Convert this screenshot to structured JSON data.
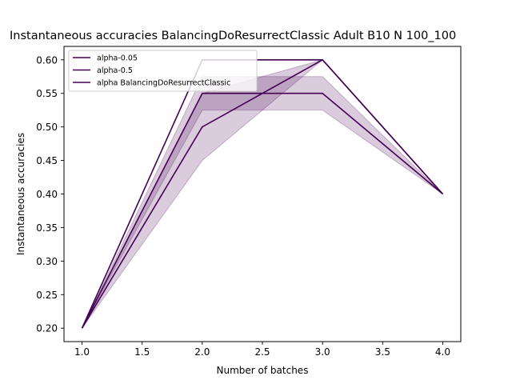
{
  "chart_data": {
    "type": "line",
    "title": "Instantaneous accuracies BalancingDoResurrectClassic Adult B10 N 100_100",
    "xlabel": "Number of batches",
    "ylabel": "Instantaneous accuracies",
    "xlim": [
      0.85,
      4.15
    ],
    "ylim": [
      0.18,
      0.62
    ],
    "x_ticks": [
      1.0,
      1.5,
      2.0,
      2.5,
      3.0,
      3.5,
      4.0
    ],
    "y_ticks": [
      0.2,
      0.25,
      0.3,
      0.35,
      0.4,
      0.45,
      0.5,
      0.55,
      0.6
    ],
    "x": [
      1.0,
      2.0,
      3.0,
      4.0
    ],
    "legend_position": "top-left",
    "grid": false,
    "series": [
      {
        "name": "alpha-0.05",
        "values": [
          0.2,
          0.6,
          0.6,
          0.4
        ],
        "color": "#440154"
      },
      {
        "name": "alpha-0.5",
        "values": [
          0.2,
          0.5,
          0.6,
          0.4
        ],
        "color": "#440154"
      },
      {
        "name": "alpha BalancingDoResurrectClassic",
        "values": [
          0.2,
          0.55,
          0.55,
          0.4
        ],
        "color": "#440154"
      }
    ],
    "bands": [
      {
        "of_series": "alpha-0.5",
        "lower": [
          0.2,
          0.45,
          0.6,
          0.4
        ],
        "upper": [
          0.2,
          0.55,
          0.6,
          0.4
        ],
        "color": "#440154",
        "alpha": 0.2
      },
      {
        "of_series": "alpha BalancingDoResurrectClassic",
        "lower": [
          0.2,
          0.525,
          0.525,
          0.4
        ],
        "upper": [
          0.2,
          0.575,
          0.575,
          0.4
        ],
        "color": "#440154",
        "alpha": 0.2
      }
    ]
  }
}
